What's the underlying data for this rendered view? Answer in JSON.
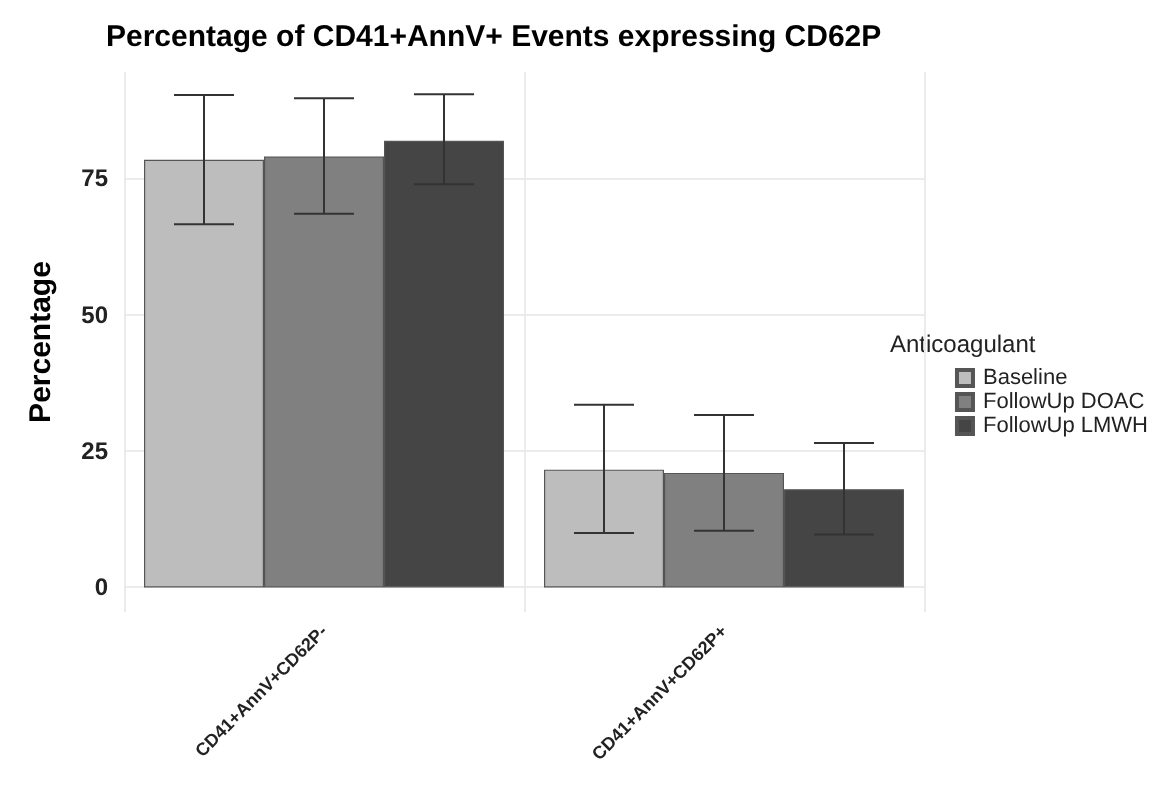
{
  "chart_data": {
    "type": "bar",
    "title": "Percentage of CD41+AnnV+ Events expressing CD62P",
    "ylabel": "Percentage",
    "legend_title": "Anticoagulant",
    "categories": [
      "CD41+AnnV+CD62P-",
      "CD41+AnnV+CD62P+"
    ],
    "series": [
      {
        "name": "Baseline",
        "color": "#bdbdbd",
        "values": [
          78.4,
          21.6
        ],
        "errors": [
          [
            66.6,
            90.3
          ],
          [
            10.0,
            33.5
          ]
        ]
      },
      {
        "name": "FollowUp DOAC",
        "color": "#808080",
        "values": [
          79.0,
          21.0
        ],
        "errors": [
          [
            68.5,
            89.7
          ],
          [
            10.4,
            31.6
          ]
        ]
      },
      {
        "name": "FollowUp LMWH",
        "color": "#454545",
        "values": [
          81.9,
          18.0
        ],
        "errors": [
          [
            73.9,
            90.4
          ],
          [
            9.7,
            26.5
          ]
        ]
      }
    ],
    "ylim": [
      -4.5,
      94.5
    ],
    "yticks": [
      0,
      25,
      50,
      75
    ],
    "grid": true,
    "legend": "right"
  }
}
